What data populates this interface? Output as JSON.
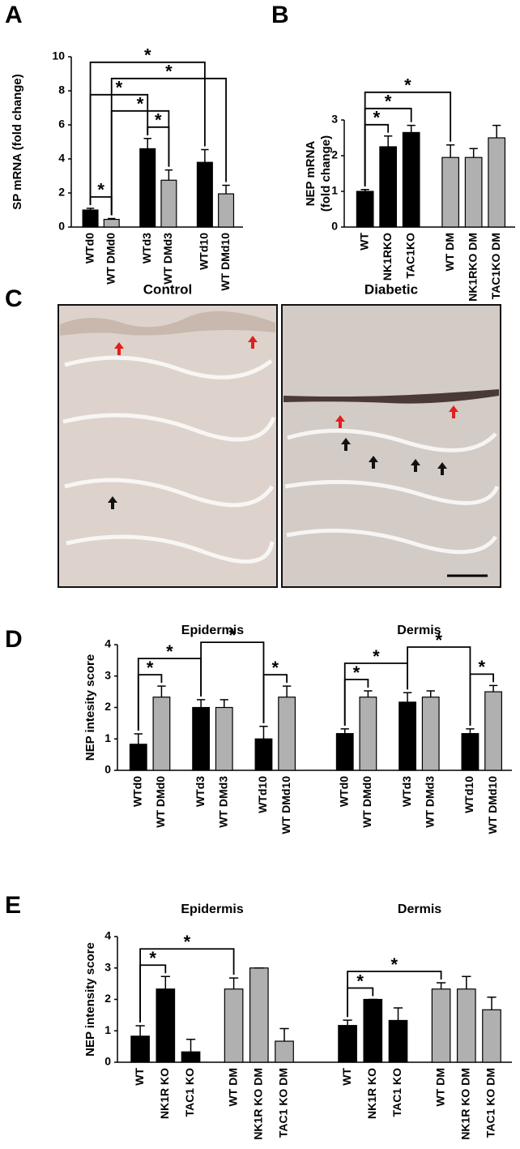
{
  "chart_data": [
    {
      "type": "bar",
      "panel": "A",
      "ylabel": "SP mRNA (fold change)",
      "ylim": [
        0,
        10
      ],
      "yticks": [
        0,
        2,
        4,
        6,
        8,
        10
      ],
      "groups": [
        {
          "categories": [
            "WTd0",
            "WT DMd0",
            "WTd3",
            "WT DMd3",
            "WTd10",
            "WT DMd10"
          ],
          "values": [
            1.0,
            0.45,
            4.6,
            2.75,
            3.8,
            1.95
          ],
          "errors": [
            0.1,
            0.05,
            0.6,
            0.6,
            0.75,
            0.5
          ],
          "colors": [
            "#000000",
            "#b0b0b0",
            "#000000",
            "#b0b0b0",
            "#000000",
            "#b0b0b0"
          ],
          "brackets": [
            {
              "label": "*",
              "from": "WTd0",
              "to": "WT DMd0"
            },
            {
              "label": "*",
              "from": "WTd3",
              "to": "WT DMd3"
            },
            {
              "label": "*",
              "from": "WT DMd0",
              "to": "WT DMd3"
            },
            {
              "label": "*",
              "from": "WTd0",
              "to": "WTd3"
            },
            {
              "label": "*",
              "from": "WT DMd0",
              "to": "WT DMd10"
            },
            {
              "label": "*",
              "from": "WTd0",
              "to": "WTd10"
            }
          ]
        }
      ]
    },
    {
      "type": "bar",
      "panel": "B",
      "ylabel": [
        "NEP mRNA",
        "(fold change)"
      ],
      "ylim": [
        0,
        3
      ],
      "yticks": [
        0,
        1,
        2,
        3
      ],
      "groups": [
        {
          "categories": [
            "WT",
            "NK1RKO",
            "TAC1KO",
            "WT DM",
            "NK1RKO DM",
            "TAC1KO DM"
          ],
          "values": [
            1.0,
            2.25,
            2.65,
            1.95,
            1.95,
            2.5
          ],
          "errors": [
            0.05,
            0.3,
            0.2,
            0.35,
            0.25,
            0.35
          ],
          "colors": [
            "#000000",
            "#000000",
            "#000000",
            "#b0b0b0",
            "#b0b0b0",
            "#b0b0b0"
          ],
          "brackets": [
            {
              "label": "*",
              "from": "WT",
              "to": "NK1RKO"
            },
            {
              "label": "*",
              "from": "WT",
              "to": "TAC1KO"
            },
            {
              "label": "*",
              "from": "WT",
              "to": "WT DM"
            }
          ]
        }
      ]
    },
    {
      "type": "bar",
      "panel": "D",
      "ylabel": "NEP intesity score",
      "ylim": [
        0,
        4
      ],
      "yticks": [
        0,
        1,
        2,
        3,
        4
      ],
      "groups": [
        {
          "title": "Epidermis",
          "categories": [
            "WTd0",
            "WT DMd0",
            "WTd3",
            "WT DMd3",
            "WTd10",
            "WT DMd10"
          ],
          "values": [
            0.83,
            2.33,
            2.0,
            2.0,
            1.0,
            2.33
          ],
          "errors": [
            0.33,
            0.35,
            0.25,
            0.25,
            0.4,
            0.35
          ],
          "colors": [
            "#000000",
            "#b0b0b0",
            "#000000",
            "#b0b0b0",
            "#000000",
            "#b0b0b0"
          ],
          "brackets": [
            {
              "label": "*",
              "from": "WTd0",
              "to": "WT DMd0"
            },
            {
              "label": "*",
              "from": "WTd10",
              "to": "WT DMd10"
            },
            {
              "label": "*",
              "from": "WTd0",
              "to": "WTd3"
            },
            {
              "label": "*",
              "from": "WTd3",
              "to": "WTd10"
            }
          ]
        },
        {
          "title": "Dermis",
          "categories": [
            "WTd0",
            "WT DMd0",
            "WTd3",
            "WT DMd3",
            "WTd10",
            "WT DMd10"
          ],
          "values": [
            1.17,
            2.33,
            2.17,
            2.33,
            1.17,
            2.5
          ],
          "errors": [
            0.15,
            0.2,
            0.3,
            0.2,
            0.15,
            0.2
          ],
          "colors": [
            "#000000",
            "#b0b0b0",
            "#000000",
            "#b0b0b0",
            "#000000",
            "#b0b0b0"
          ],
          "brackets": [
            {
              "label": "*",
              "from": "WTd0",
              "to": "WT DMd0"
            },
            {
              "label": "*",
              "from": "WTd10",
              "to": "WT DMd10"
            },
            {
              "label": "*",
              "from": "WTd0",
              "to": "WTd3"
            },
            {
              "label": "*",
              "from": "WTd3",
              "to": "WTd10"
            }
          ]
        }
      ]
    },
    {
      "type": "bar",
      "panel": "E",
      "ylabel": "NEP intensity score",
      "ylim": [
        0,
        4
      ],
      "yticks": [
        0,
        1,
        2,
        3,
        4
      ],
      "groups": [
        {
          "title": "Epidermis",
          "categories": [
            "WT",
            "NK1R KO",
            "TAC1  KO",
            "WT DM",
            "NK1R KO DM",
            "TAC1 KO DM"
          ],
          "values": [
            0.83,
            2.33,
            0.33,
            2.33,
            3.0,
            0.67
          ],
          "errors": [
            0.33,
            0.4,
            0.4,
            0.35,
            0,
            0.4
          ],
          "colors": [
            "#000000",
            "#000000",
            "#000000",
            "#b0b0b0",
            "#b0b0b0",
            "#b0b0b0"
          ],
          "brackets": [
            {
              "label": "*",
              "from": "WT",
              "to": "NK1R KO"
            },
            {
              "label": "*",
              "from": "WT",
              "to": "WT DM"
            }
          ]
        },
        {
          "title": "Dermis",
          "categories": [
            "WT",
            "NK1R KO",
            "TAC1 KO",
            "WT DM",
            "NK1R KO DM",
            "TAC1 KO DM"
          ],
          "values": [
            1.17,
            2.0,
            1.33,
            2.33,
            2.33,
            1.67
          ],
          "errors": [
            0.17,
            0,
            0.4,
            0.2,
            0.4,
            0.4
          ],
          "colors": [
            "#000000",
            "#000000",
            "#000000",
            "#b0b0b0",
            "#b0b0b0",
            "#b0b0b0"
          ],
          "brackets": [
            {
              "label": "*",
              "from": "WT",
              "to": "NK1R KO"
            },
            {
              "label": "*",
              "from": "WT",
              "to": "WT DM"
            }
          ]
        }
      ]
    }
  ],
  "panel_c": {
    "label": "C",
    "titles": [
      "Control",
      "Diabetic"
    ]
  }
}
